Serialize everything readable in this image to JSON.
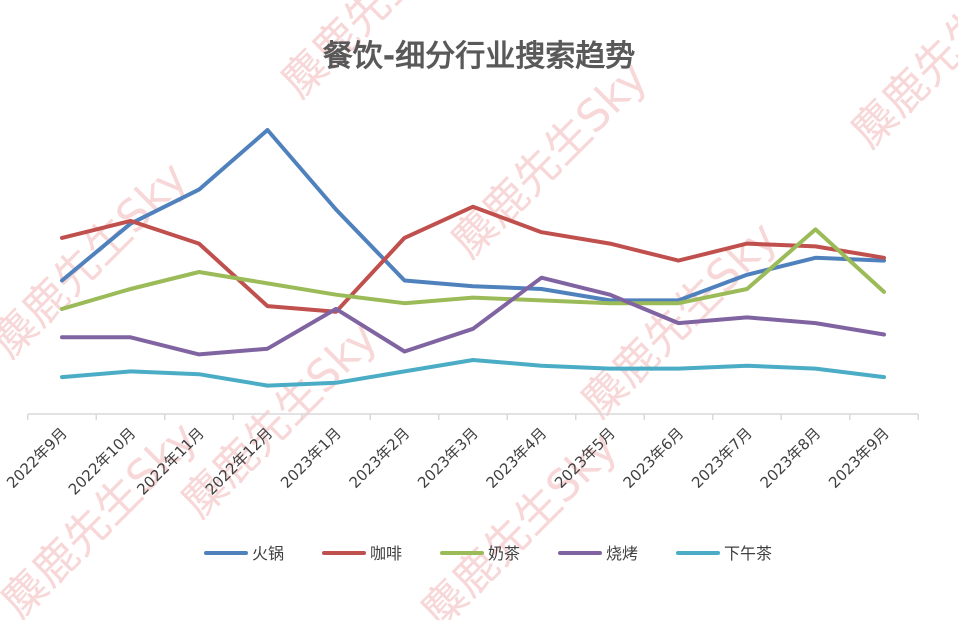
{
  "watermark": "麋鹿先生Sky",
  "chart_data": {
    "type": "line",
    "title": "餐饮-细分行业搜索趋势",
    "xlabel": "",
    "ylabel": "",
    "ylim": [
      0,
      100
    ],
    "grid": false,
    "y_axis_visible": false,
    "legend_position": "bottom",
    "categories": [
      "2022年9月",
      "2022年10月",
      "2022年11月",
      "2022年12月",
      "2023年1月",
      "2023年2月",
      "2023年3月",
      "2023年4月",
      "2023年5月",
      "2023年6月",
      "2023年7月",
      "2023年8月",
      "2023年9月"
    ],
    "series": [
      {
        "name": "火锅",
        "color": "#4f81bd",
        "values": [
          47,
          67,
          79,
          100,
          72,
          47,
          45,
          44,
          40,
          40,
          49,
          55,
          54
        ]
      },
      {
        "name": "咖啡",
        "color": "#c0504d",
        "values": [
          62,
          68,
          60,
          38,
          36,
          62,
          73,
          64,
          60,
          54,
          60,
          59,
          55
        ]
      },
      {
        "name": "奶茶",
        "color": "#9bbb59",
        "values": [
          37,
          44,
          50,
          46,
          42,
          39,
          41,
          40,
          39,
          39,
          44,
          65,
          43
        ]
      },
      {
        "name": "烧烤",
        "color": "#8064a2",
        "values": [
          27,
          27,
          21,
          23,
          37,
          22,
          30,
          48,
          42,
          32,
          34,
          32,
          28
        ]
      },
      {
        "name": "下午茶",
        "color": "#4bacc6",
        "values": [
          13,
          15,
          14,
          10,
          11,
          15,
          19,
          17,
          16,
          16,
          17,
          16,
          13
        ]
      }
    ]
  }
}
